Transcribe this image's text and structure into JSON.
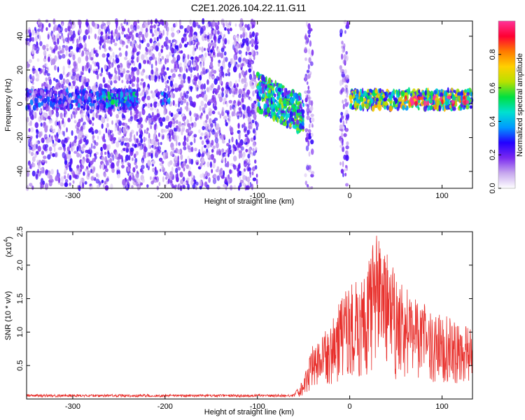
{
  "chart_data": [
    {
      "type": "heatmap",
      "title": "C2E1.2026.104.22.11.G11",
      "xlabel": "Height of straight line (km)",
      "ylabel": "Frequency (Hz)",
      "xlim": [
        -350,
        133
      ],
      "ylim": [
        -50,
        49
      ],
      "xticks": [
        -300,
        -200,
        -100,
        0,
        100
      ],
      "xtick_labels": [
        "-300",
        "-200",
        "-100",
        "0",
        "100"
      ],
      "yticks": [
        -40,
        -20,
        0,
        20,
        40
      ],
      "ytick_labels": [
        "-40",
        "-20",
        "0",
        "20",
        "40"
      ],
      "colorbar": {
        "label": "Normalized spectral amplitude",
        "range": [
          0,
          1
        ],
        "ticks": [
          0.0,
          0.2,
          0.4,
          0.6,
          0.8
        ],
        "tick_labels": [
          "0.0",
          "0.2",
          "0.4",
          "0.6",
          "0.8"
        ],
        "colormap": [
          "#ffffff",
          "#c7a8ee",
          "#7a2af0",
          "#2200ff",
          "#0099ff",
          "#00e0d0",
          "#00e040",
          "#b8e000",
          "#ffd000",
          "#ff7a00",
          "#ff0033",
          "#ff3399"
        ]
      },
      "regions": [
        {
          "x": [
            -350,
            -100
          ],
          "y": [
            -50,
            49
          ],
          "type": "noise",
          "level": 0.12
        },
        {
          "x": [
            -350,
            -230
          ],
          "y": [
            -3,
            8
          ],
          "type": "band",
          "level": 0.25
        },
        {
          "x": [
            -270,
            -230
          ],
          "y": [
            -1,
            6
          ],
          "type": "band",
          "level": 0.4
        },
        {
          "x": [
            -205,
            -195
          ],
          "y": [
            0,
            6
          ],
          "type": "band",
          "level": 0.3
        },
        {
          "x": [
            -100,
            -50
          ],
          "y": [
            -10,
            12
          ],
          "type": "descending",
          "level": 0.45
        },
        {
          "x": [
            -48,
            -40
          ],
          "y": [
            -50,
            49
          ],
          "type": "noise",
          "level": 0.14
        },
        {
          "x": [
            -10,
            -2
          ],
          "y": [
            -50,
            49
          ],
          "type": "noise",
          "level": 0.14
        },
        {
          "x": [
            0,
            133
          ],
          "y": [
            -3,
            8
          ],
          "type": "band",
          "level": 0.55
        },
        {
          "x": [
            60,
            130
          ],
          "y": [
            0,
            4
          ],
          "type": "band",
          "level": 0.85
        }
      ]
    },
    {
      "type": "line",
      "xlabel": "Height of straight line (km)",
      "ylabel": "SNR (10 * v/v)",
      "yscale_label": "(x10",
      "yscale_exponent": "4",
      "yscale_suffix": ")",
      "xlim": [
        -350,
        133
      ],
      "ylim": [
        0,
        2.5
      ],
      "xticks": [
        -300,
        -200,
        -100,
        0,
        100
      ],
      "xtick_labels": [
        "-300",
        "-200",
        "-100",
        "0",
        "100"
      ],
      "yticks": [
        0.5,
        1.0,
        1.5,
        2.0,
        2.5
      ],
      "ytick_labels": [
        "0.5",
        "1.0",
        "1.5",
        "2.0",
        "2.5"
      ],
      "series": [
        {
          "name": "SNR",
          "color": "#e8302c",
          "envelope_x": [
            -350,
            -100,
            -60,
            -50,
            -40,
            -30,
            -20,
            -10,
            0,
            10,
            20,
            30,
            40,
            50,
            60,
            70,
            80,
            90,
            100,
            110,
            120,
            133
          ],
          "envelope_y": [
            0.05,
            0.05,
            0.08,
            0.3,
            0.8,
            0.95,
            1.15,
            1.5,
            1.7,
            1.8,
            2.1,
            2.5,
            2.25,
            1.95,
            1.7,
            1.5,
            1.45,
            1.35,
            1.3,
            1.2,
            1.12,
            1.05
          ]
        }
      ]
    }
  ]
}
